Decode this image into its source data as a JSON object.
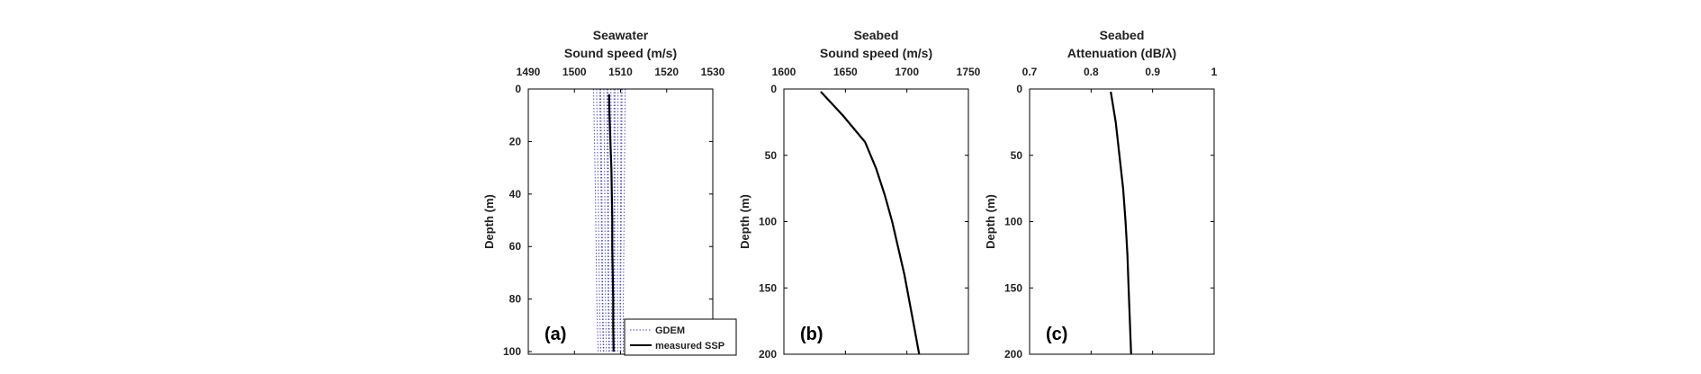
{
  "chart_data": [
    {
      "type": "line",
      "panel_label": "(a)",
      "title": [
        "Seawater",
        "Sound speed (m/s)"
      ],
      "ylabel": "Depth (m)",
      "xlim": [
        1490,
        1530
      ],
      "ylim": [
        0,
        101
      ],
      "y_reversed": true,
      "x_axis_position": "top",
      "xticks": [
        1490,
        1500,
        1510,
        1520,
        1530
      ],
      "yticks": [
        0,
        20,
        40,
        60,
        80,
        100
      ],
      "legend": {
        "placement": "bottom-right",
        "entries": [
          "GDEM",
          "measured SSP"
        ]
      },
      "series": [
        {
          "name": "measured SSP",
          "style": "solid",
          "color": "#000000",
          "points": [
            [
              1507.5,
              2
            ],
            [
              1507.6,
              10
            ],
            [
              1507.8,
              20
            ],
            [
              1508.0,
              30
            ],
            [
              1508.1,
              40
            ],
            [
              1508.2,
              50
            ],
            [
              1508.2,
              60
            ],
            [
              1508.3,
              70
            ],
            [
              1508.4,
              80
            ],
            [
              1508.4,
              90
            ],
            [
              1508.5,
              100
            ]
          ]
        },
        {
          "name": "GDEM",
          "style": "dotted",
          "color": "#3a3ad6",
          "band": {
            "left": [
              [
                1504.3,
                0
              ],
              [
                1504.7,
                40
              ],
              [
                1505.0,
                80
              ],
              [
                1505.3,
                100
              ]
            ],
            "right": [
              [
                1511.0,
                0
              ],
              [
                1510.8,
                40
              ],
              [
                1510.6,
                80
              ],
              [
                1510.6,
                100
              ]
            ]
          },
          "member_count": 14
        }
      ]
    },
    {
      "type": "line",
      "panel_label": "(b)",
      "title": [
        "Seabed",
        "Sound speed (m/s)"
      ],
      "ylabel": "Depth (m)",
      "xlim": [
        1600,
        1750
      ],
      "ylim": [
        0,
        200
      ],
      "y_reversed": true,
      "x_axis_position": "top",
      "xticks": [
        1600,
        1650,
        1700,
        1750
      ],
      "yticks": [
        0,
        50,
        100,
        150,
        200
      ],
      "series": [
        {
          "style": "solid",
          "color": "#000000",
          "points": [
            [
              1630,
              2
            ],
            [
              1648,
              20
            ],
            [
              1666,
              40
            ],
            [
              1675,
              60
            ],
            [
              1682,
              80
            ],
            [
              1688,
              100
            ],
            [
              1693,
              120
            ],
            [
              1698,
              140
            ],
            [
              1702,
              160
            ],
            [
              1706,
              180
            ],
            [
              1710,
              200
            ]
          ]
        }
      ]
    },
    {
      "type": "line",
      "panel_label": "(c)",
      "title": [
        "Seabed",
        "Attenuation (dB/λ)"
      ],
      "ylabel": "Depth (m)",
      "xlim": [
        0.7,
        1
      ],
      "ylim": [
        0,
        200
      ],
      "y_reversed": true,
      "x_axis_position": "top",
      "xticks": [
        0.7,
        0.8,
        0.9,
        1
      ],
      "yticks": [
        0,
        50,
        100,
        150,
        200
      ],
      "series": [
        {
          "style": "solid",
          "color": "#000000",
          "points": [
            [
              0.832,
              2
            ],
            [
              0.84,
              25
            ],
            [
              0.846,
              50
            ],
            [
              0.852,
              75
            ],
            [
              0.856,
              100
            ],
            [
              0.859,
              125
            ],
            [
              0.861,
              150
            ],
            [
              0.863,
              175
            ],
            [
              0.865,
              200
            ]
          ]
        }
      ]
    }
  ]
}
